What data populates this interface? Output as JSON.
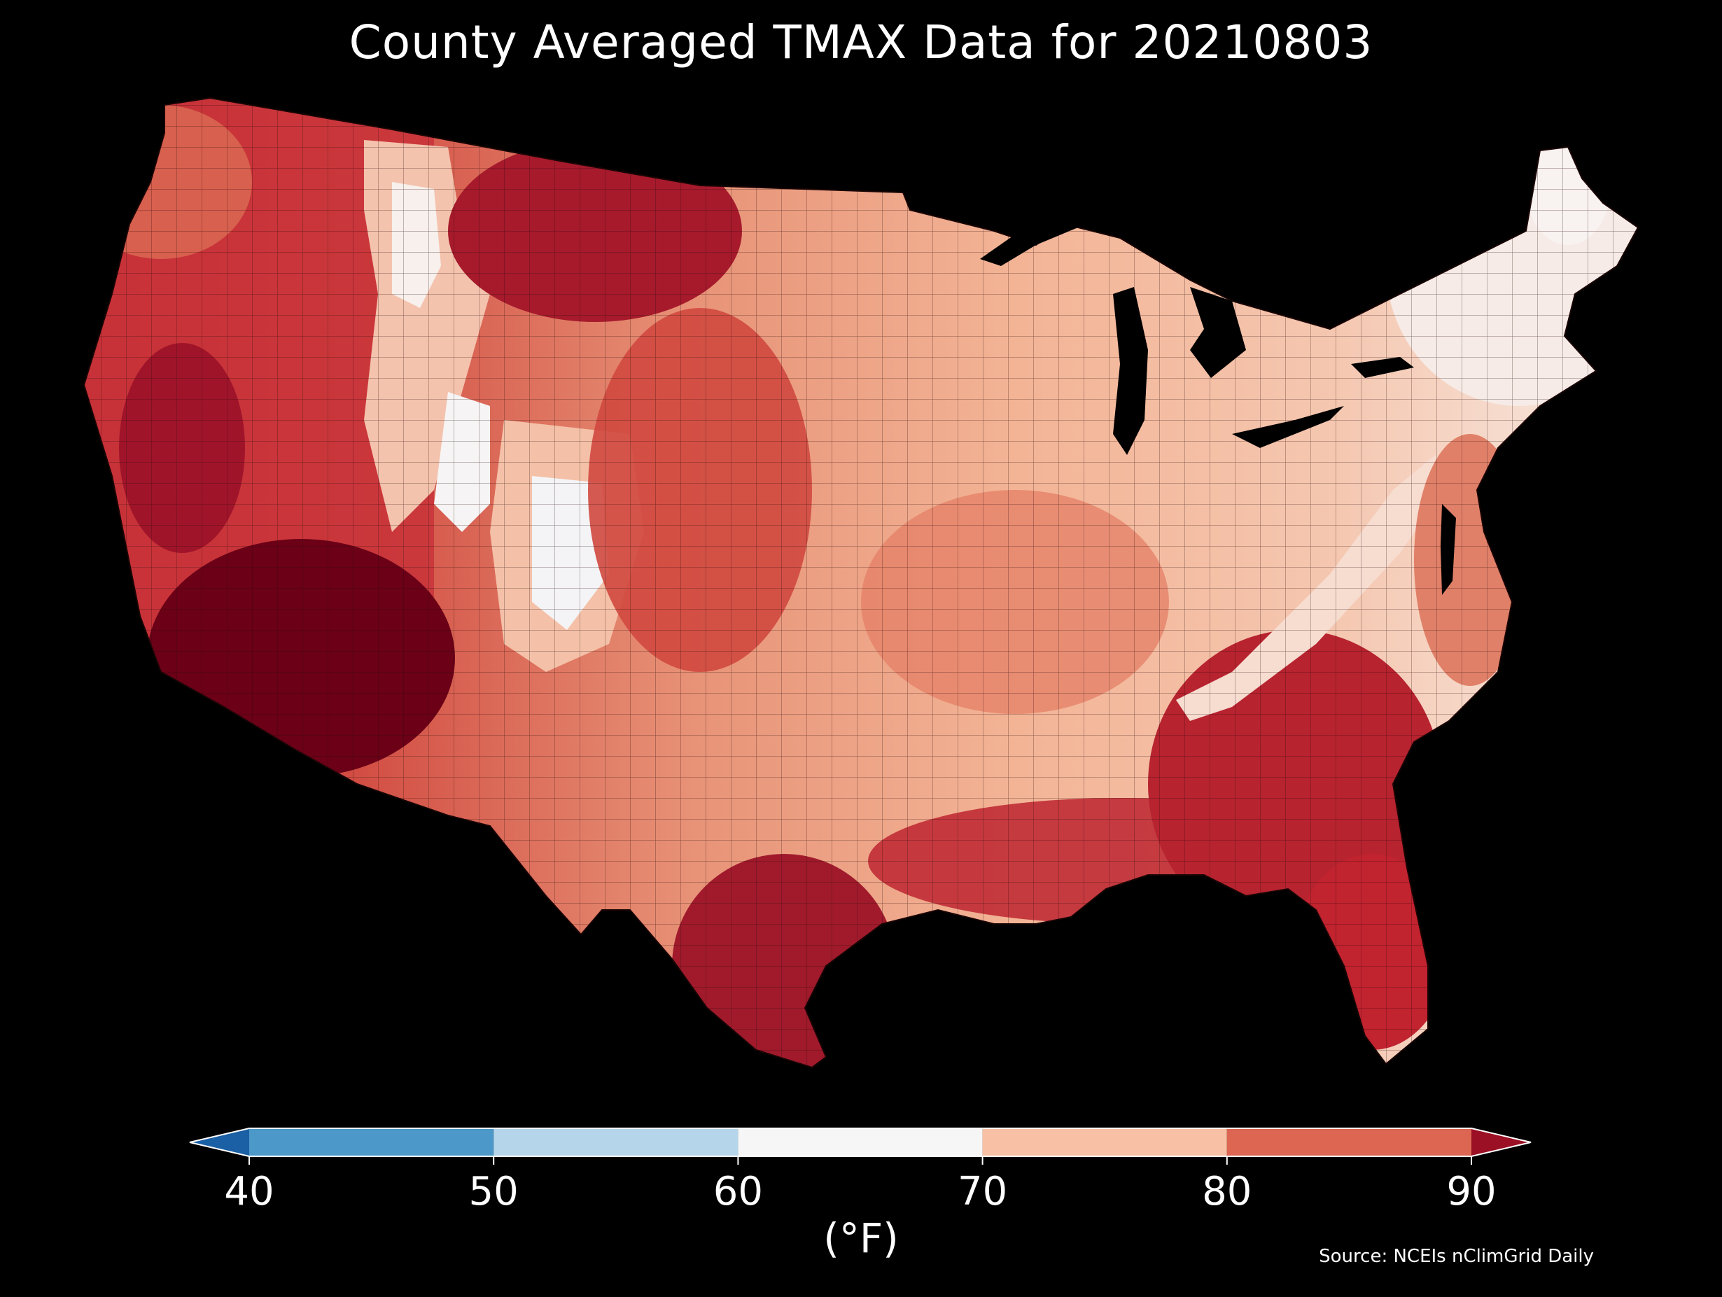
{
  "chart_data": {
    "type": "choropleth",
    "title": "County Averaged TMAX Data for 20210803",
    "colorbar": {
      "ticks": [
        40,
        50,
        60,
        70,
        80,
        90
      ],
      "unit": "(°F)",
      "bins": [
        {
          "from": "<40",
          "to": 40,
          "color": "#1b5fa4"
        },
        {
          "from": 40,
          "to": 50,
          "color": "#4b98c9"
        },
        {
          "from": 50,
          "to": 60,
          "color": "#b5d6ea"
        },
        {
          "from": 60,
          "to": 70,
          "color": "#f7f6f6"
        },
        {
          "from": 70,
          "to": 80,
          "color": "#f8c1a6"
        },
        {
          "from": 80,
          "to": 90,
          "color": "#dc6652"
        },
        {
          "from": 90,
          "to": ">90",
          "color": "#9b1024"
        }
      ],
      "extend": "both"
    }
  },
  "source_note": "Source: NCEIs nClimGrid Daily",
  "colors": {
    "background": "#000000",
    "text": "#ffffff",
    "county_border": "#2a0a0a"
  }
}
